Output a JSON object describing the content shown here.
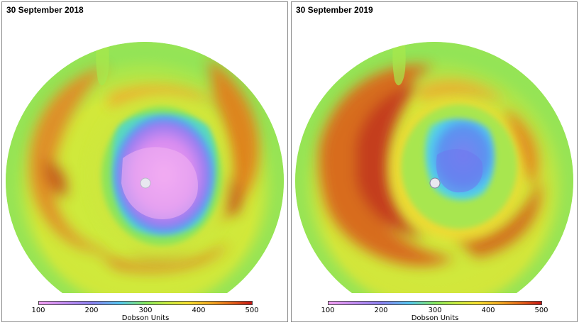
{
  "panels": [
    {
      "title": "30 September 2018",
      "colorbar": {
        "ticks": [
          "100",
          "200",
          "300",
          "400",
          "500"
        ],
        "label": "Dobson Units"
      }
    },
    {
      "title": "30 September 2019",
      "colorbar": {
        "ticks": [
          "100",
          "200",
          "300",
          "400",
          "500"
        ],
        "label": "Dobson Units"
      }
    }
  ],
  "colorbar_range": [
    100,
    500
  ],
  "colors": {
    "v100": "#f4a0f4",
    "v200": "#8a82f0",
    "v250": "#55c8f0",
    "v300": "#86e860",
    "v350": "#d8ec3a",
    "v400": "#f0a020",
    "v500": "#c41414",
    "pole_marker": "#e8e8f0"
  }
}
